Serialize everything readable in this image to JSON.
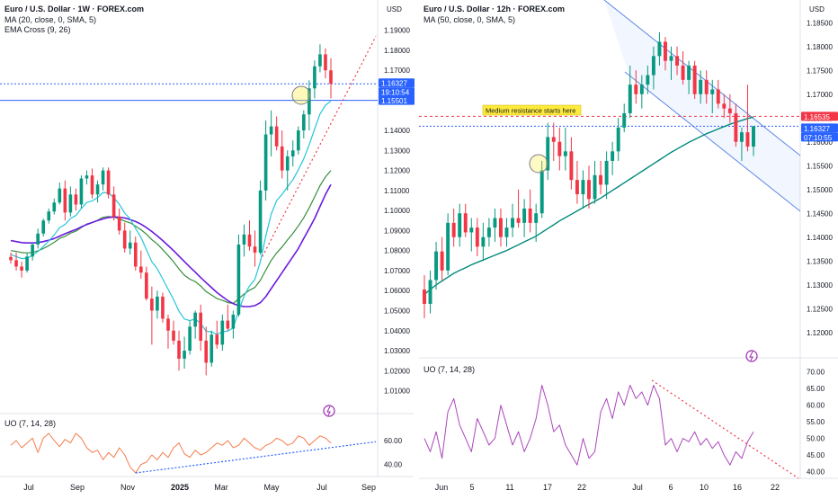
{
  "chart_data": [
    {
      "type": "candlestick",
      "title": "Euro / U.S. Dollar · 1W · FOREX.com",
      "indicators": [
        "MA (20, close, 0, SMA, 5)",
        "EMA Cross (9, 26)"
      ],
      "currency": "USD",
      "ylim": [
        1.0125,
        1.1975
      ],
      "yticks": [
        "1.19000",
        "1.18000",
        "1.17000",
        "1.15501",
        "1.14000",
        "1.13000",
        "1.12000",
        "1.11000",
        "1.10000",
        "1.09000",
        "1.08000",
        "1.07000",
        "1.06000",
        "1.05000",
        "1.04000",
        "1.03000",
        "1.02000",
        "1.01000"
      ],
      "xticks": [
        "Jul",
        "Sep",
        "Nov",
        "2025",
        "Mar",
        "May",
        "Jul",
        "Sep"
      ],
      "price_label": {
        "value": "1.16327",
        "countdown": "19:10:54"
      },
      "support_label": "1.15501",
      "candles": [
        [
          1.0768,
          1.079,
          1.0735,
          1.0752
        ],
        [
          1.0752,
          1.079,
          1.07,
          1.072
        ],
        [
          1.072,
          1.0745,
          1.0665,
          1.07
        ],
        [
          1.07,
          1.079,
          1.069,
          1.077
        ],
        [
          1.077,
          1.084,
          1.075,
          1.083
        ],
        [
          1.083,
          1.091,
          1.081,
          1.0885
        ],
        [
          1.0885,
          1.096,
          1.087,
          1.095
        ],
        [
          1.095,
          1.101,
          1.0935,
          1.0995
        ],
        [
          1.0995,
          1.106,
          1.098,
          1.104
        ],
        [
          1.104,
          1.114,
          1.103,
          1.111
        ],
        [
          1.111,
          1.115,
          1.095,
          1.099
        ],
        [
          1.099,
          1.112,
          1.097,
          1.108
        ],
        [
          1.108,
          1.111,
          1.1,
          1.103
        ],
        [
          1.103,
          1.1175,
          1.101,
          1.116
        ],
        [
          1.116,
          1.12,
          1.113,
          1.1175
        ],
        [
          1.1175,
          1.121,
          1.106,
          1.108
        ],
        [
          1.108,
          1.115,
          1.104,
          1.113
        ],
        [
          1.113,
          1.1215,
          1.11,
          1.12
        ],
        [
          1.12,
          1.1215,
          1.106,
          1.108
        ],
        [
          1.108,
          1.112,
          1.095,
          1.097
        ],
        [
          1.097,
          1.101,
          1.088,
          1.09
        ],
        [
          1.09,
          1.094,
          1.079,
          1.081
        ],
        [
          1.081,
          1.09,
          1.078,
          1.084
        ],
        [
          1.084,
          1.087,
          1.07,
          1.072
        ],
        [
          1.072,
          1.08,
          1.066,
          1.069
        ],
        [
          1.069,
          1.072,
          1.055,
          1.056
        ],
        [
          1.056,
          1.062,
          1.033,
          1.05
        ],
        [
          1.05,
          1.06,
          1.046,
          1.057
        ],
        [
          1.057,
          1.059,
          1.044,
          1.046
        ],
        [
          1.046,
          1.048,
          1.031,
          1.04
        ],
        [
          1.04,
          1.045,
          1.033,
          1.035
        ],
        [
          1.035,
          1.04,
          1.02,
          1.026
        ],
        [
          1.026,
          1.037,
          1.021,
          1.03
        ],
        [
          1.03,
          1.045,
          1.028,
          1.042
        ],
        [
          1.042,
          1.05,
          1.036,
          1.049
        ],
        [
          1.049,
          1.053,
          1.03,
          1.035
        ],
        [
          1.035,
          1.042,
          1.0177,
          1.024
        ],
        [
          1.024,
          1.04,
          1.022,
          1.038
        ],
        [
          1.038,
          1.045,
          1.031,
          1.033
        ],
        [
          1.033,
          1.048,
          1.03,
          1.045
        ],
        [
          1.045,
          1.053,
          1.04,
          1.041
        ],
        [
          1.041,
          1.05,
          1.036,
          1.048
        ],
        [
          1.048,
          1.088,
          1.047,
          1.083
        ],
        [
          1.083,
          1.093,
          1.077,
          1.088
        ],
        [
          1.088,
          1.095,
          1.08,
          1.082
        ],
        [
          1.082,
          1.09,
          1.072,
          1.079
        ],
        [
          1.079,
          1.115,
          1.078,
          1.11
        ],
        [
          1.11,
          1.145,
          1.105,
          1.138
        ],
        [
          1.138,
          1.15,
          1.127,
          1.142
        ],
        [
          1.142,
          1.147,
          1.13,
          1.132
        ],
        [
          1.132,
          1.14,
          1.116,
          1.12
        ],
        [
          1.12,
          1.13,
          1.11,
          1.127
        ],
        [
          1.127,
          1.135,
          1.122,
          1.13
        ],
        [
          1.13,
          1.142,
          1.128,
          1.14
        ],
        [
          1.14,
          1.15,
          1.136,
          1.148
        ],
        [
          1.148,
          1.165,
          1.14,
          1.161
        ],
        [
          1.161,
          1.175,
          1.156,
          1.172
        ],
        [
          1.172,
          1.183,
          1.169,
          1.178
        ],
        [
          1.178,
          1.181,
          1.166,
          1.17
        ],
        [
          1.17,
          1.176,
          1.156,
          1.1633
        ]
      ],
      "ma20": [
        1.085,
        1.0845,
        1.084,
        1.0838,
        1.0838,
        1.084,
        1.0845,
        1.0852,
        1.086,
        1.0872,
        1.0884,
        1.0895,
        1.0905,
        1.0918,
        1.093,
        1.094,
        1.095,
        1.0958,
        1.0965,
        1.0968,
        1.0967,
        1.0963,
        1.0955,
        1.0945,
        1.0932,
        1.0915,
        1.0895,
        1.0873,
        1.085,
        1.0825,
        1.08,
        1.0772,
        1.0745,
        1.0718,
        1.0692,
        1.0665,
        1.064,
        1.0615,
        1.059,
        1.057,
        1.055,
        1.0535,
        1.0525,
        1.052,
        1.052,
        1.0525,
        1.054,
        1.057,
        1.061,
        1.065,
        1.069,
        1.073,
        1.077,
        1.081,
        1.086,
        1.091,
        1.096,
        1.102,
        1.108,
        1.113
      ],
      "ema9": [
        1.078,
        1.077,
        1.076,
        1.0762,
        1.0775,
        1.0795,
        1.082,
        1.0848,
        1.0878,
        1.0915,
        1.093,
        1.096,
        1.0975,
        1.101,
        1.104,
        1.1048,
        1.1065,
        1.109,
        1.1088,
        1.1064,
        1.1031,
        1.0987,
        1.0958,
        1.091,
        1.0866,
        1.0805,
        1.0744,
        1.0709,
        1.0659,
        1.0607,
        1.0556,
        1.0497,
        1.0458,
        1.045,
        1.0458,
        1.0436,
        1.0397,
        1.0394,
        1.0381,
        1.0395,
        1.0398,
        1.0414,
        1.0497,
        1.0574,
        1.0623,
        1.0656,
        1.0745,
        1.0872,
        1.0982,
        1.105,
        1.108,
        1.1118,
        1.1154,
        1.1203,
        1.1258,
        1.1329,
        1.1407,
        1.1482,
        1.1526,
        1.1547
      ],
      "ema26": [
        1.08,
        1.0796,
        1.079,
        1.0788,
        1.0791,
        1.0799,
        1.081,
        1.0824,
        1.0841,
        1.0861,
        1.0871,
        1.0887,
        1.0897,
        1.0915,
        1.0933,
        1.094,
        1.0951,
        1.0966,
        1.097,
        1.0967,
        1.0959,
        1.0947,
        1.0938,
        1.0922,
        1.0904,
        1.0882,
        1.0854,
        1.0833,
        1.0805,
        1.0775,
        1.0744,
        1.0708,
        1.0677,
        1.0657,
        1.0645,
        1.0623,
        1.0595,
        1.0578,
        1.056,
        1.0551,
        1.054,
        1.0536,
        1.0559,
        1.0583,
        1.0602,
        1.0616,
        1.0652,
        1.0702,
        1.0751,
        1.0788,
        1.0818,
        1.0853,
        1.0886,
        1.0923,
        1.0964,
        1.1013,
        1.1068,
        1.1124,
        1.1168,
        1.12
      ],
      "uo": {
        "label": "UO (7, 14, 28)",
        "ylim": [
          30,
          75
        ],
        "yticks": [
          "60.00",
          "40.00"
        ],
        "values": [
          56,
          60,
          54,
          58,
          62,
          50,
          62,
          66,
          60,
          55,
          61,
          58,
          66,
          62,
          54,
          50,
          52,
          44,
          50,
          46,
          54,
          48,
          38,
          33,
          40,
          42,
          48,
          44,
          50,
          46,
          54,
          58,
          49,
          46,
          52,
          48,
          50,
          54,
          58,
          56,
          60,
          54,
          56,
          62,
          58,
          54,
          52,
          56,
          58,
          62,
          60,
          56,
          58,
          64,
          62,
          56,
          60,
          64,
          62,
          58
        ]
      }
    },
    {
      "type": "candlestick",
      "title": "Euro / U.S. Dollar · 12h · FOREX.com",
      "indicators": [
        "MA (50, close, 0, SMA, 5)"
      ],
      "currency": "USD",
      "ylim": [
        1.1175,
        1.1875
      ],
      "yticks": [
        "1.18500",
        "1.18000",
        "1.17500",
        "1.17000",
        "1.16500",
        "1.16000",
        "1.15500",
        "1.15000",
        "1.14500",
        "1.14000",
        "1.13500",
        "1.13000",
        "1.12500",
        "1.12000"
      ],
      "xticks": [
        "Jun",
        "5",
        "11",
        "17",
        "22",
        "Jul",
        "6",
        "10",
        "16",
        "22"
      ],
      "price_label": {
        "value": "1.16327",
        "countdown": "07:10:55"
      },
      "resistance_label": "1.16535",
      "annotation": "Medium resistance starts here",
      "candles": [
        [
          1.129,
          1.132,
          1.123,
          1.126
        ],
        [
          1.126,
          1.133,
          1.124,
          1.131
        ],
        [
          1.131,
          1.139,
          1.129,
          1.137
        ],
        [
          1.137,
          1.14,
          1.131,
          1.133
        ],
        [
          1.133,
          1.145,
          1.132,
          1.143
        ],
        [
          1.143,
          1.146,
          1.138,
          1.14
        ],
        [
          1.14,
          1.147,
          1.138,
          1.145
        ],
        [
          1.145,
          1.147,
          1.14,
          1.141
        ],
        [
          1.141,
          1.144,
          1.137,
          1.142
        ],
        [
          1.142,
          1.144,
          1.136,
          1.138
        ],
        [
          1.138,
          1.143,
          1.135,
          1.14
        ],
        [
          1.14,
          1.144,
          1.138,
          1.142
        ],
        [
          1.142,
          1.146,
          1.139,
          1.144
        ],
        [
          1.144,
          1.146,
          1.138,
          1.14
        ],
        [
          1.14,
          1.144,
          1.138,
          1.142
        ],
        [
          1.142,
          1.147,
          1.14,
          1.144
        ],
        [
          1.144,
          1.15,
          1.142,
          1.143
        ],
        [
          1.143,
          1.148,
          1.14,
          1.146
        ],
        [
          1.146,
          1.15,
          1.141,
          1.143
        ],
        [
          1.143,
          1.147,
          1.139,
          1.145
        ],
        [
          1.145,
          1.156,
          1.144,
          1.154
        ],
        [
          1.154,
          1.164,
          1.152,
          1.161
        ],
        [
          1.161,
          1.164,
          1.156,
          1.16
        ],
        [
          1.16,
          1.163,
          1.154,
          1.157
        ],
        [
          1.157,
          1.163,
          1.154,
          1.158
        ],
        [
          1.158,
          1.161,
          1.15,
          1.152
        ],
        [
          1.152,
          1.156,
          1.147,
          1.149
        ],
        [
          1.149,
          1.154,
          1.146,
          1.152
        ],
        [
          1.152,
          1.155,
          1.146,
          1.148
        ],
        [
          1.148,
          1.156,
          1.147,
          1.153
        ],
        [
          1.153,
          1.156,
          1.149,
          1.151
        ],
        [
          1.151,
          1.158,
          1.148,
          1.156
        ],
        [
          1.156,
          1.16,
          1.153,
          1.158
        ],
        [
          1.158,
          1.165,
          1.156,
          1.163
        ],
        [
          1.163,
          1.168,
          1.162,
          1.166
        ],
        [
          1.166,
          1.176,
          1.165,
          1.172
        ],
        [
          1.172,
          1.175,
          1.168,
          1.17
        ],
        [
          1.17,
          1.174,
          1.167,
          1.172
        ],
        [
          1.172,
          1.176,
          1.17,
          1.174
        ],
        [
          1.174,
          1.18,
          1.171,
          1.178
        ],
        [
          1.178,
          1.183,
          1.176,
          1.181
        ],
        [
          1.181,
          1.182,
          1.175,
          1.177
        ],
        [
          1.177,
          1.18,
          1.173,
          1.178
        ],
        [
          1.178,
          1.18,
          1.174,
          1.176
        ],
        [
          1.176,
          1.179,
          1.172,
          1.173
        ],
        [
          1.173,
          1.177,
          1.17,
          1.176
        ],
        [
          1.176,
          1.177,
          1.169,
          1.17
        ],
        [
          1.17,
          1.175,
          1.168,
          1.173
        ],
        [
          1.173,
          1.175,
          1.168,
          1.17
        ],
        [
          1.17,
          1.173,
          1.166,
          1.171
        ],
        [
          1.171,
          1.173,
          1.167,
          1.168
        ],
        [
          1.168,
          1.17,
          1.165,
          1.167
        ],
        [
          1.167,
          1.17,
          1.164,
          1.166
        ],
        [
          1.166,
          1.168,
          1.159,
          1.16
        ],
        [
          1.16,
          1.163,
          1.156,
          1.162
        ],
        [
          1.162,
          1.172,
          1.158,
          1.159
        ],
        [
          1.159,
          1.163,
          1.157,
          1.1633
        ]
      ],
      "ma50": [
        1.128,
        1.129,
        1.13,
        1.1308,
        1.1316,
        1.1324,
        1.133,
        1.1336,
        1.1342,
        1.1347,
        1.1352,
        1.1357,
        1.1362,
        1.1367,
        1.1372,
        1.1378,
        1.1384,
        1.139,
        1.1396,
        1.1402,
        1.141,
        1.1418,
        1.1426,
        1.1434,
        1.1441,
        1.1448,
        1.1455,
        1.1462,
        1.1469,
        1.1475,
        1.1482,
        1.149,
        1.1498,
        1.1506,
        1.1514,
        1.1522,
        1.153,
        1.1538,
        1.1546,
        1.1554,
        1.1562,
        1.157,
        1.1578,
        1.1585,
        1.1592,
        1.1599,
        1.1605,
        1.1611,
        1.1617,
        1.1622,
        1.1627,
        1.1632,
        1.1637,
        1.1641,
        1.1645,
        1.1649,
        1.1652
      ],
      "uo": {
        "label": "UO (7, 14, 28)",
        "ylim": [
          38,
          71
        ],
        "yticks": [
          "70.00",
          "65.00",
          "60.00",
          "55.00",
          "50.00",
          "45.00",
          "40.00"
        ],
        "values": [
          50,
          46,
          52,
          44,
          58,
          62,
          54,
          50,
          46,
          56,
          52,
          48,
          50,
          60,
          54,
          48,
          52,
          46,
          50,
          56,
          66,
          60,
          52,
          54,
          48,
          45,
          42,
          50,
          44,
          46,
          58,
          62,
          56,
          64,
          60,
          66,
          62,
          64,
          60,
          66,
          62,
          48,
          50,
          46,
          50,
          49,
          52,
          48,
          50,
          47,
          49,
          45,
          42,
          46,
          44,
          49,
          52
        ]
      }
    }
  ]
}
